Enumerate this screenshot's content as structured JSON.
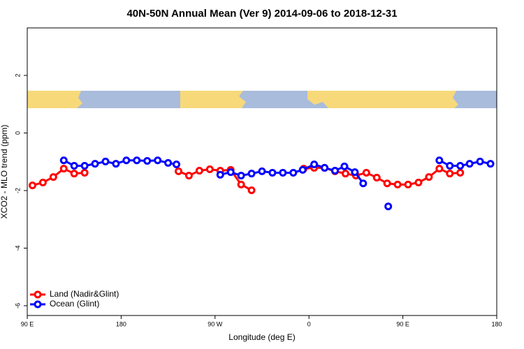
{
  "chart_data": {
    "type": "line",
    "title": "40N-50N Annual Mean (Ver 9)   2014-09-06 to 2018-12-31",
    "x_label": "Longitude (deg E)",
    "y_label": "XCO2 - MLO trend (ppm)",
    "xlim": [
      90,
      540
    ],
    "ylim": [
      -6.34,
      3.65
    ],
    "xticks": [
      {
        "value": 90,
        "label": "90 E"
      },
      {
        "value": 180,
        "label": "180"
      },
      {
        "value": 270,
        "label": "90 W"
      },
      {
        "value": 360,
        "label": "0"
      },
      {
        "value": 450,
        "label": "90 E"
      },
      {
        "value": 540,
        "label": "180"
      }
    ],
    "yticks": [
      2,
      0,
      -2,
      -4,
      -6
    ],
    "legend": "bottom-left",
    "series": [
      {
        "name": "Land (Nadir&Glint)",
        "color": "#ff0000",
        "x": [
          95,
          105,
          115,
          125,
          135,
          145,
          190,
          235,
          245,
          255,
          265,
          275,
          285,
          295,
          305,
          330,
          355,
          365,
          375,
          385,
          395,
          405,
          415,
          425,
          435,
          445,
          455,
          465,
          475,
          485,
          495,
          505
        ],
        "values": [
          -1.82,
          -1.72,
          -1.53,
          -1.24,
          -1.41,
          -1.38,
          null,
          -1.33,
          -1.48,
          -1.31,
          -1.26,
          -1.31,
          -1.28,
          -1.79,
          -1.99,
          null,
          -1.24,
          -1.21,
          -1.21,
          -1.33,
          -1.41,
          -1.48,
          -1.38,
          -1.55,
          -1.75,
          -1.79,
          -1.79,
          -1.72,
          -1.53,
          -1.24,
          -1.41,
          -1.38
        ]
      },
      {
        "name": "Ocean (Glint)",
        "color": "#0000ff",
        "x": [
          125,
          135,
          145,
          155,
          165,
          175,
          185,
          195,
          205,
          215,
          225,
          233,
          255,
          275,
          285,
          295,
          305,
          315,
          325,
          335,
          345,
          354,
          365,
          375,
          385,
          394,
          404,
          412,
          425,
          436,
          460,
          485,
          495,
          505,
          514,
          524,
          534
        ],
        "values": [
          -0.95,
          -1.14,
          -1.14,
          -1.07,
          -0.99,
          -1.07,
          -0.95,
          -0.95,
          -0.97,
          -0.95,
          -1.04,
          -1.09,
          null,
          -1.45,
          -1.36,
          -1.48,
          -1.41,
          -1.33,
          -1.38,
          -1.38,
          -1.38,
          -1.28,
          -1.09,
          -1.21,
          -1.31,
          -1.16,
          -1.36,
          -1.75,
          null,
          -2.55,
          null,
          -0.95,
          -1.14,
          -1.14,
          -1.07,
          -0.99,
          -1.07
        ]
      }
    ]
  }
}
